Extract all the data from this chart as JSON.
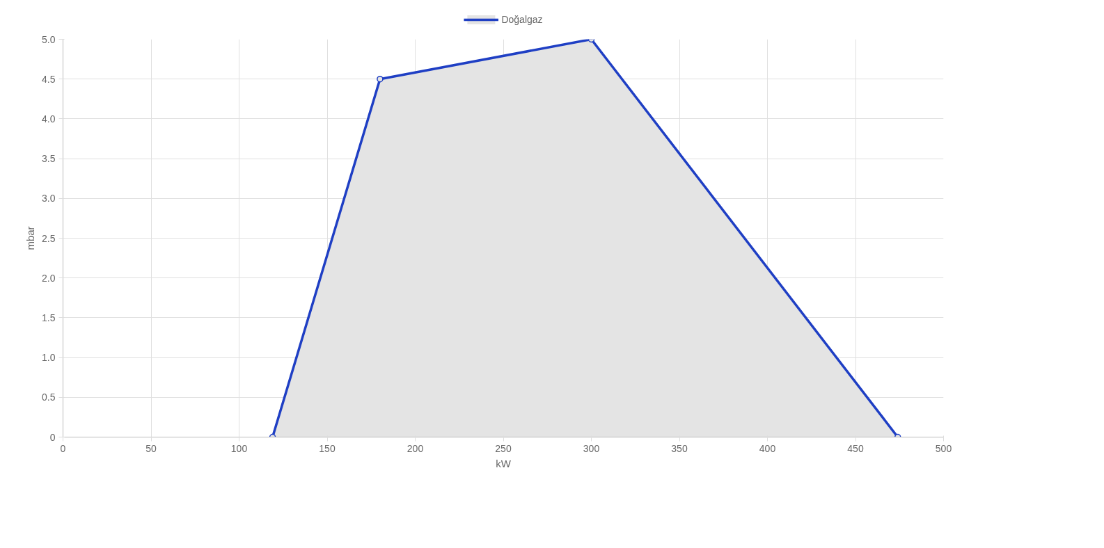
{
  "chart_data": {
    "type": "area",
    "xlabel": "kW",
    "ylabel": "mbar",
    "x": [
      119,
      180,
      300,
      474
    ],
    "series": [
      {
        "name": "Doğalgaz",
        "color": "#1f3fc4",
        "values": [
          0,
          4.5,
          5,
          0
        ]
      }
    ],
    "xlim": [
      0,
      500
    ],
    "xticks": [
      0,
      50,
      100,
      150,
      200,
      250,
      300,
      350,
      400,
      450,
      500
    ],
    "ylim": [
      0,
      5
    ],
    "yticks": [
      {
        "value": 0,
        "label": "0"
      },
      {
        "value": 0.5,
        "label": "0.5"
      },
      {
        "value": 1,
        "label": "1.0"
      },
      {
        "value": 1.5,
        "label": "1.5"
      },
      {
        "value": 2,
        "label": "2.0"
      },
      {
        "value": 2.5,
        "label": "2.5"
      },
      {
        "value": 3,
        "label": "3.0"
      },
      {
        "value": 3.5,
        "label": "3.5"
      },
      {
        "value": 4,
        "label": "4.0"
      },
      {
        "value": 4.5,
        "label": "4.5"
      },
      {
        "value": 5,
        "label": "5.0"
      }
    ],
    "grid": true,
    "legend": "top",
    "marker": "circle",
    "line_style": "solid"
  }
}
